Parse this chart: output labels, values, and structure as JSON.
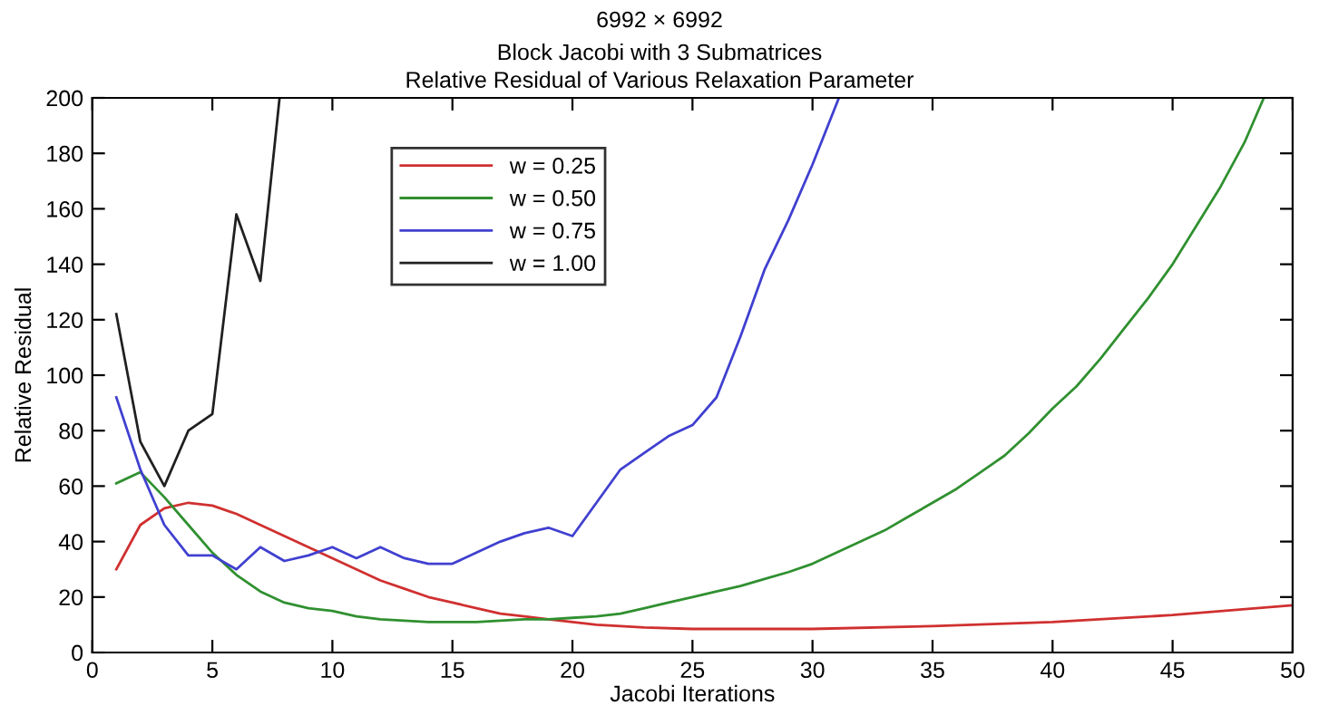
{
  "chart_data": {
    "type": "line",
    "title": "6992 × 6992",
    "subtitle": "Block Jacobi with 3 Submatrices\nRelative Residual of Various Relaxation Parameter",
    "xlabel": "Jacobi Iterations",
    "ylabel": "Relative Residual",
    "xlim": [
      0,
      50
    ],
    "ylim": [
      0,
      200
    ],
    "xticks": [
      0,
      5,
      10,
      15,
      20,
      25,
      30,
      35,
      40,
      45,
      50
    ],
    "yticks": [
      0,
      20,
      40,
      60,
      80,
      100,
      120,
      140,
      160,
      180,
      200
    ],
    "grid": false,
    "legend": "top left",
    "line_style": "solid",
    "series": [
      {
        "name": "w = 0.25",
        "color": "#d03030",
        "x": [
          1,
          2,
          3,
          4,
          5,
          6,
          7,
          8,
          9,
          10,
          11,
          12,
          13,
          14,
          15,
          16,
          17,
          18,
          19,
          20,
          21,
          22,
          23,
          25,
          30,
          35,
          40,
          45,
          50
        ],
        "values": [
          30,
          46,
          52,
          54,
          53,
          50,
          46,
          42,
          38,
          34,
          30,
          26,
          23,
          20,
          18,
          16,
          14,
          13,
          12,
          11,
          10,
          9.5,
          9,
          8.5,
          8.5,
          9.5,
          11,
          13.5,
          17
        ]
      },
      {
        "name": "w = 0.50",
        "color": "#309030",
        "x": [
          1,
          2,
          3,
          4,
          5,
          6,
          7,
          8,
          9,
          10,
          11,
          12,
          13,
          14,
          15,
          16,
          17,
          18,
          19,
          20,
          21,
          22,
          23,
          24,
          25,
          26,
          27,
          28,
          29,
          30,
          31,
          32,
          33,
          34,
          35,
          36,
          37,
          38,
          39,
          40,
          41,
          42,
          43,
          44,
          45,
          46,
          47,
          48,
          48.8
        ],
        "values": [
          61,
          65,
          56,
          46,
          36,
          28,
          22,
          18,
          16,
          15,
          13,
          12,
          11.5,
          11,
          11,
          11,
          11.5,
          12,
          12,
          12.5,
          13,
          14,
          16,
          18,
          20,
          22,
          24,
          26.5,
          29,
          32,
          36,
          40,
          44,
          49,
          54,
          59,
          65,
          71,
          79,
          88,
          96,
          106,
          117,
          128,
          140,
          154,
          168,
          184,
          200
        ]
      },
      {
        "name": "w = 0.75",
        "color": "#4040d0",
        "x": [
          1,
          2,
          3,
          4,
          5,
          6,
          7,
          8,
          9,
          10,
          11,
          12,
          13,
          14,
          15,
          16,
          17,
          18,
          19,
          20,
          21,
          22,
          23,
          24,
          25,
          26,
          27,
          28,
          29,
          30,
          31.1
        ],
        "values": [
          92,
          66,
          46,
          35,
          35,
          30,
          38,
          33,
          35,
          38,
          34,
          38,
          34,
          32,
          32,
          36,
          40,
          43,
          45,
          42,
          54,
          66,
          72,
          78,
          82,
          92,
          114,
          138,
          156,
          176,
          200
        ]
      },
      {
        "name": "w = 1.00",
        "color": "#202020",
        "x": [
          1,
          2,
          3,
          4,
          5,
          6,
          7,
          7.8
        ],
        "values": [
          122,
          76,
          60,
          80,
          86,
          158,
          134,
          200
        ]
      }
    ]
  }
}
